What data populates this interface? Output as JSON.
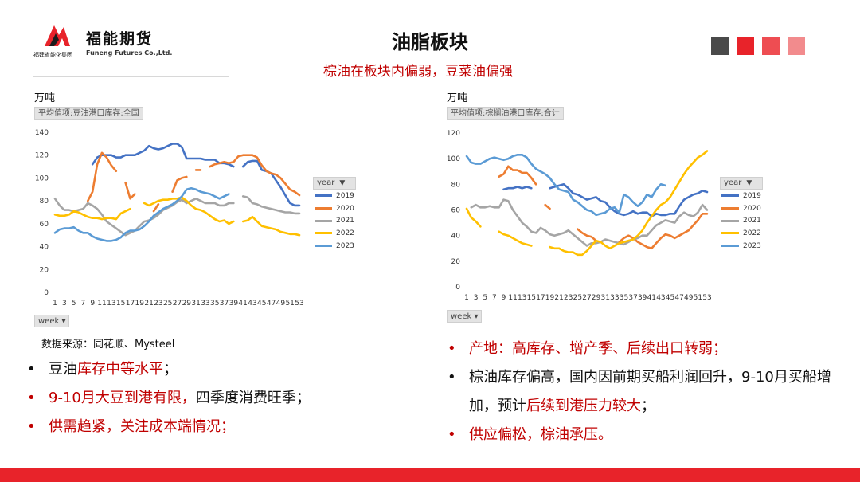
{
  "brand": {
    "name_cn": "福能期货",
    "name_en": "Funeng Futures Co.,Ltd.",
    "group_name": "福建省能化集团",
    "colors": {
      "primary_red": "#e8232a",
      "dark_gray": "#4a4a4a"
    }
  },
  "header": {
    "title": "油脂板块",
    "subtitle": "棕油在板块内偏弱，豆菜油偏强"
  },
  "decor_squares": [
    "#4a4a4a",
    "#e8232a",
    "#ee4d52",
    "#f28b8d"
  ],
  "chart_data": [
    {
      "type": "line",
      "unit": "万吨",
      "field_label": "平均值项:豆油港口库存:全国",
      "legend_title": "year",
      "x_selector": "week",
      "x": [
        1,
        2,
        3,
        4,
        5,
        6,
        7,
        8,
        9,
        10,
        11,
        12,
        13,
        14,
        15,
        16,
        17,
        18,
        19,
        20,
        21,
        22,
        23,
        24,
        25,
        26,
        27,
        28,
        29,
        30,
        31,
        32,
        33,
        34,
        35,
        36,
        37,
        38,
        39,
        40,
        41,
        42,
        43,
        44,
        45,
        46,
        47,
        48,
        49,
        50,
        51,
        52,
        53
      ],
      "xticks": [
        1,
        3,
        5,
        7,
        9,
        11,
        13,
        15,
        17,
        19,
        21,
        23,
        25,
        27,
        29,
        31,
        33,
        35,
        37,
        39,
        41,
        43,
        45,
        47,
        49,
        51,
        53
      ],
      "ylim": [
        0,
        140
      ],
      "yticks": [
        0,
        20,
        40,
        60,
        80,
        100,
        120,
        140
      ],
      "grid": false,
      "legend_position": "right",
      "series": [
        {
          "name": "2019",
          "color": "#4472c4",
          "values": [
            null,
            null,
            null,
            null,
            null,
            null,
            null,
            null,
            112,
            118,
            120,
            120,
            120,
            118,
            118,
            120,
            120,
            120,
            122,
            124,
            128,
            126,
            125,
            126,
            128,
            130,
            130,
            127,
            117,
            117,
            117,
            117,
            116,
            116,
            116,
            113,
            113,
            112,
            110,
            null,
            110,
            114,
            115,
            115,
            107,
            106,
            104,
            98,
            92,
            85,
            78,
            76,
            76
          ]
        },
        {
          "name": "2020",
          "color": "#ed7d31",
          "values": [
            null,
            null,
            null,
            null,
            null,
            null,
            null,
            80,
            88,
            112,
            122,
            118,
            111,
            106,
            null,
            96,
            82,
            86,
            null,
            null,
            null,
            71,
            77,
            null,
            null,
            88,
            98,
            100,
            101,
            null,
            107,
            107,
            null,
            110,
            112,
            113,
            114,
            113,
            114,
            119,
            120,
            120,
            120,
            118,
            111,
            106,
            104,
            103,
            100,
            95,
            90,
            88,
            85
          ]
        },
        {
          "name": "2021",
          "color": "#a5a5a5",
          "values": [
            82,
            76,
            72,
            72,
            71,
            72,
            73,
            78,
            76,
            73,
            68,
            62,
            59,
            56,
            53,
            50,
            52,
            54,
            58,
            62,
            63,
            65,
            68,
            72,
            74,
            76,
            79,
            81,
            78,
            80,
            82,
            80,
            78,
            78,
            78,
            76,
            76,
            78,
            78,
            null,
            84,
            83,
            78,
            77,
            75,
            74,
            73,
            72,
            71,
            70,
            70,
            69,
            69
          ]
        },
        {
          "name": "2022",
          "color": "#ffc000",
          "values": [
            68,
            67,
            67,
            68,
            71,
            70,
            68,
            66,
            65,
            65,
            64,
            65,
            65,
            64,
            69,
            71,
            73,
            null,
            null,
            78,
            76,
            78,
            80,
            81,
            81,
            82,
            82,
            83,
            80,
            76,
            73,
            72,
            70,
            67,
            64,
            62,
            63,
            60,
            62,
            null,
            62,
            63,
            66,
            62,
            58,
            57,
            56,
            55,
            53,
            52,
            51,
            51,
            50
          ]
        },
        {
          "name": "2023",
          "color": "#5b9bd5",
          "values": [
            52,
            55,
            56,
            56,
            57,
            54,
            52,
            52,
            49,
            47,
            46,
            45,
            45,
            46,
            48,
            52,
            54,
            54,
            55,
            58,
            62,
            67,
            70,
            73,
            75,
            77,
            80,
            84,
            90,
            91,
            90,
            88,
            87,
            86,
            84,
            82,
            84,
            86,
            null,
            null,
            null,
            null,
            null,
            null,
            null,
            null,
            null,
            null,
            null,
            null,
            null,
            null,
            null
          ]
        }
      ]
    },
    {
      "type": "line",
      "unit": "万吨",
      "field_label": "平均值项:棕榈油港口库存:合计",
      "legend_title": "year",
      "x_selector": "week",
      "x": [
        1,
        2,
        3,
        4,
        5,
        6,
        7,
        8,
        9,
        10,
        11,
        12,
        13,
        14,
        15,
        16,
        17,
        18,
        19,
        20,
        21,
        22,
        23,
        24,
        25,
        26,
        27,
        28,
        29,
        30,
        31,
        32,
        33,
        34,
        35,
        36,
        37,
        38,
        39,
        40,
        41,
        42,
        43,
        44,
        45,
        46,
        47,
        48,
        49,
        50,
        51,
        52,
        53
      ],
      "xticks": [
        1,
        3,
        5,
        7,
        9,
        11,
        13,
        15,
        17,
        19,
        21,
        23,
        25,
        27,
        29,
        31,
        33,
        35,
        37,
        39,
        41,
        43,
        45,
        47,
        49,
        51,
        53
      ],
      "ylim": [
        0,
        120
      ],
      "yticks": [
        0,
        20,
        40,
        60,
        80,
        100,
        120
      ],
      "grid": false,
      "legend_position": "right",
      "series": [
        {
          "name": "2019",
          "color": "#4472c4",
          "values": [
            null,
            null,
            null,
            null,
            null,
            null,
            null,
            null,
            76,
            77,
            77,
            78,
            77,
            78,
            77,
            null,
            null,
            null,
            77,
            78,
            79,
            80,
            77,
            73,
            72,
            70,
            68,
            69,
            70,
            67,
            66,
            62,
            59,
            57,
            56,
            57,
            59,
            57,
            58,
            58,
            55,
            57,
            56,
            56,
            57,
            57,
            63,
            68,
            70,
            72,
            73,
            75,
            74
          ]
        },
        {
          "name": "2020",
          "color": "#ed7d31",
          "values": [
            null,
            null,
            null,
            null,
            null,
            null,
            null,
            86,
            88,
            94,
            91,
            91,
            89,
            89,
            85,
            80,
            null,
            64,
            61,
            null,
            null,
            null,
            null,
            null,
            45,
            42,
            40,
            39,
            36,
            null,
            null,
            null,
            null,
            35,
            38,
            40,
            38,
            35,
            33,
            31,
            30,
            34,
            38,
            41,
            40,
            38,
            40,
            42,
            44,
            48,
            52,
            57,
            57
          ]
        },
        {
          "name": "2021",
          "color": "#a5a5a5",
          "values": [
            null,
            62,
            64,
            62,
            62,
            63,
            62,
            62,
            68,
            67,
            60,
            55,
            50,
            47,
            43,
            42,
            46,
            44,
            41,
            40,
            41,
            42,
            44,
            41,
            38,
            35,
            32,
            34,
            34,
            35,
            37,
            36,
            35,
            34,
            33,
            35,
            37,
            38,
            40,
            40,
            44,
            48,
            50,
            52,
            51,
            50,
            55,
            58,
            56,
            55,
            58,
            64,
            60
          ]
        },
        {
          "name": "2022",
          "color": "#ffc000",
          "values": [
            61,
            54,
            51,
            47,
            null,
            null,
            null,
            43,
            41,
            40,
            38,
            36,
            34,
            33,
            32,
            null,
            null,
            null,
            31,
            30,
            30,
            28,
            27,
            27,
            25,
            25,
            28,
            32,
            36,
            35,
            32,
            30,
            32,
            34,
            35,
            36,
            37,
            40,
            44,
            50,
            55,
            60,
            64,
            66,
            70,
            76,
            82,
            88,
            93,
            97,
            101,
            103,
            106
          ]
        },
        {
          "name": "2023",
          "color": "#5b9bd5",
          "values": [
            102,
            97,
            96,
            96,
            98,
            100,
            101,
            100,
            99,
            100,
            102,
            103,
            103,
            101,
            96,
            92,
            90,
            88,
            85,
            80,
            76,
            75,
            74,
            68,
            66,
            63,
            60,
            59,
            56,
            57,
            58,
            61,
            62,
            58,
            72,
            70,
            66,
            63,
            66,
            72,
            70,
            76,
            80,
            79,
            null,
            null,
            null,
            null,
            null,
            null,
            null,
            null,
            null
          ]
        }
      ]
    }
  ],
  "source_text": "数据来源：同花顺、Mysteel",
  "bullets_left": [
    {
      "segments": [
        {
          "text": "豆油",
          "color": "black"
        },
        {
          "text": "库存中等水平",
          "color": "red"
        },
        {
          "text": "；",
          "color": "black"
        }
      ]
    },
    {
      "segments": [
        {
          "text": "9-10月大豆到港有限，",
          "color": "red"
        },
        {
          "text": "四季度消费旺季；",
          "color": "black"
        }
      ]
    },
    {
      "segments": [
        {
          "text": "供需趋紧，关注成本端情况；",
          "color": "red"
        }
      ]
    }
  ],
  "bullets_right": [
    {
      "segments": [
        {
          "text": "产地：高库存、增产季、后续出口转弱；",
          "color": "red"
        }
      ]
    },
    {
      "segments": [
        {
          "text": "棕油库存偏高，国内因前期买船利润回升，9-10月买船增加，预计",
          "color": "black"
        },
        {
          "text": "后续到港压力较大",
          "color": "red"
        },
        {
          "text": "；",
          "color": "black"
        }
      ]
    },
    {
      "segments": [
        {
          "text": "供应偏松，棕油承压。",
          "color": "red"
        }
      ]
    }
  ]
}
